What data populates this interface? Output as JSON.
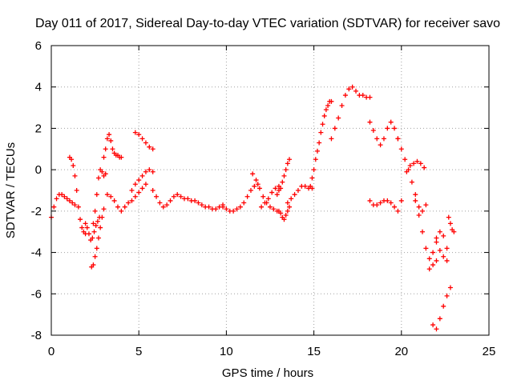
{
  "chart_data": {
    "type": "scatter",
    "title": "Day 011 of 2017, Sidereal Day-to-day VTEC variation (SDTVAR) for receiver savo",
    "xlabel": "GPS time / hours",
    "ylabel": "SDTVAR / TECUs",
    "xlim": [
      0,
      25
    ],
    "ylim": [
      -8,
      6
    ],
    "xticks": [
      "0",
      "5",
      "10",
      "15",
      "20",
      "25"
    ],
    "yticks": [
      "-8",
      "-6",
      "-4",
      "-2",
      "0",
      "2",
      "4",
      "6"
    ],
    "grid": true,
    "legend": "none",
    "marker": "plus",
    "color": "#ff0000",
    "series": [
      {
        "x": [
          0.0,
          0.15,
          0.3,
          0.45,
          0.6,
          0.75,
          0.9,
          1.05,
          1.2,
          1.35
        ],
        "y": [
          -2.3,
          -1.8,
          -1.4,
          -1.2,
          -1.2,
          -1.3,
          -1.4,
          -1.5,
          -1.6,
          -1.7
        ]
      },
      {
        "x": [
          1.05,
          1.15,
          1.25,
          1.35,
          1.45,
          1.55,
          1.65,
          1.75,
          1.85,
          1.95
        ],
        "y": [
          0.6,
          0.5,
          0.2,
          -0.3,
          -1.0,
          -1.8,
          -2.4,
          -2.8,
          -3.0,
          -3.1
        ]
      },
      {
        "x": [
          1.95,
          2.05,
          2.15,
          2.25,
          2.35,
          2.45,
          2.55,
          2.65,
          2.75
        ],
        "y": [
          -2.6,
          -2.8,
          -3.1,
          -3.4,
          -3.3,
          -3.0,
          -2.7,
          -2.5,
          -2.3
        ]
      },
      {
        "x": [
          2.3,
          2.4,
          2.5,
          2.6,
          2.7,
          2.8,
          2.9,
          3.0
        ],
        "y": [
          -4.7,
          -4.6,
          -4.2,
          -3.8,
          -3.3,
          -2.8,
          -2.3,
          -1.9
        ]
      },
      {
        "x": [
          2.4,
          2.5,
          2.6,
          2.7,
          2.8,
          2.9,
          3.0,
          3.1
        ],
        "y": [
          -2.6,
          -2.0,
          -1.2,
          -0.4,
          0.0,
          -0.1,
          -0.3,
          -0.2
        ]
      },
      {
        "x": [
          3.0,
          3.1,
          3.2,
          3.3,
          3.4,
          3.5,
          3.6,
          3.7,
          3.8,
          3.9,
          4.0
        ],
        "y": [
          0.6,
          1.0,
          1.5,
          1.7,
          1.4,
          1.0,
          0.8,
          0.7,
          0.7,
          0.6,
          0.6
        ]
      },
      {
        "x": [
          3.2,
          3.4,
          3.6,
          3.8,
          4.0,
          4.2,
          4.4,
          4.6,
          4.8,
          5.0,
          5.2,
          5.4
        ],
        "y": [
          -1.2,
          -1.3,
          -1.5,
          -1.8,
          -2.0,
          -1.8,
          -1.6,
          -1.5,
          -1.3,
          -1.1,
          -0.9,
          -0.7
        ]
      },
      {
        "x": [
          4.6,
          4.8,
          5.0,
          5.2,
          5.4,
          5.6,
          5.8
        ],
        "y": [
          -1.0,
          -0.7,
          -0.5,
          -0.3,
          -0.1,
          0.0,
          -0.1
        ]
      },
      {
        "x": [
          4.8,
          5.0,
          5.2,
          5.4,
          5.6,
          5.8
        ],
        "y": [
          1.8,
          1.7,
          1.5,
          1.3,
          1.1,
          1.0
        ]
      },
      {
        "x": [
          5.8,
          6.0,
          6.2,
          6.4,
          6.6,
          6.8,
          7.0,
          7.2,
          7.4,
          7.6,
          7.8,
          8.0,
          8.2,
          8.4,
          8.6,
          8.8,
          9.0,
          9.2,
          9.4,
          9.6,
          9.8
        ],
        "y": [
          -1.0,
          -1.3,
          -1.6,
          -1.8,
          -1.7,
          -1.5,
          -1.3,
          -1.2,
          -1.3,
          -1.4,
          -1.4,
          -1.5,
          -1.5,
          -1.6,
          -1.7,
          -1.8,
          -1.8,
          -1.9,
          -1.9,
          -1.8,
          -1.7
        ]
      },
      {
        "x": [
          9.8,
          10.0,
          10.2,
          10.4,
          10.6,
          10.8,
          11.0,
          11.2,
          11.4,
          11.6,
          11.8
        ],
        "y": [
          -1.8,
          -1.9,
          -2.0,
          -2.0,
          -1.9,
          -1.8,
          -1.6,
          -1.3,
          -1.0,
          -0.8,
          -0.7
        ]
      },
      {
        "x": [
          11.5,
          11.7,
          11.9,
          12.1,
          12.3,
          12.5,
          12.7,
          12.9
        ],
        "y": [
          -0.2,
          -0.5,
          -0.9,
          -1.3,
          -1.6,
          -1.8,
          -1.9,
          -2.0
        ]
      },
      {
        "x": [
          12.0,
          12.2,
          12.4,
          12.6,
          12.8,
          13.0
        ],
        "y": [
          -1.8,
          -1.6,
          -1.4,
          -1.1,
          -0.9,
          -0.8
        ]
      },
      {
        "x": [
          12.9,
          13.0,
          13.1,
          13.2,
          13.3,
          13.4,
          13.5,
          13.6
        ],
        "y": [
          -1.2,
          -1.0,
          -0.9,
          -0.6,
          -0.3,
          0.0,
          0.3,
          0.5
        ]
      },
      {
        "x": [
          13.0,
          13.1,
          13.2,
          13.3,
          13.4,
          13.5,
          13.6
        ],
        "y": [
          -2.0,
          -2.1,
          -2.3,
          -2.4,
          -2.2,
          -2.0,
          -1.8
        ]
      },
      {
        "x": [
          13.5,
          13.7,
          13.9,
          14.1,
          14.3,
          14.5,
          14.7,
          14.9
        ],
        "y": [
          -1.6,
          -1.4,
          -1.2,
          -1.0,
          -0.8,
          -0.8,
          -0.9,
          -0.9
        ]
      },
      {
        "x": [
          14.8,
          14.9,
          15.0,
          15.1,
          15.2,
          15.3,
          15.4,
          15.5,
          15.6,
          15.7,
          15.8,
          15.9,
          16.0
        ],
        "y": [
          -0.8,
          -0.4,
          0.0,
          0.5,
          0.9,
          1.3,
          1.8,
          2.2,
          2.6,
          2.9,
          3.1,
          3.3,
          3.3
        ]
      },
      {
        "x": [
          16.0,
          16.2,
          16.4,
          16.6,
          16.8,
          17.0,
          17.2,
          17.4,
          17.6,
          17.8,
          18.0,
          18.2
        ],
        "y": [
          1.5,
          2.0,
          2.5,
          3.1,
          3.6,
          3.9,
          4.0,
          3.8,
          3.6,
          3.6,
          3.5,
          3.5
        ]
      },
      {
        "x": [
          18.2,
          18.4,
          18.6,
          18.8,
          19.0,
          19.2,
          19.4,
          19.6,
          19.8
        ],
        "y": [
          2.3,
          1.9,
          1.5,
          1.2,
          1.5,
          2.0,
          2.3,
          2.0,
          1.5
        ]
      },
      {
        "x": [
          18.2,
          18.4,
          18.6,
          18.8,
          19.0,
          19.2,
          19.4,
          19.6,
          19.8,
          20.0
        ],
        "y": [
          -1.5,
          -1.7,
          -1.7,
          -1.6,
          -1.5,
          -1.5,
          -1.6,
          -1.8,
          -2.0,
          -1.5
        ]
      },
      {
        "x": [
          19.8,
          20.0,
          20.2,
          20.4,
          20.6,
          20.8,
          21.0,
          21.2,
          21.4
        ],
        "y": [
          1.5,
          1.0,
          0.5,
          0.0,
          -0.6,
          -1.2,
          -1.8,
          -2.0,
          -1.7
        ]
      },
      {
        "x": [
          20.3,
          20.5,
          20.7,
          20.9,
          21.1,
          21.3
        ],
        "y": [
          -0.1,
          0.2,
          0.3,
          0.4,
          0.3,
          0.1
        ]
      },
      {
        "x": [
          20.8,
          21.0,
          21.2,
          21.4,
          21.6,
          21.8,
          22.0
        ],
        "y": [
          -1.5,
          -2.2,
          -3.0,
          -3.8,
          -4.3,
          -4.6,
          -4.4
        ]
      },
      {
        "x": [
          21.6,
          21.8,
          22.0,
          22.2,
          22.4,
          22.6
        ],
        "y": [
          -4.8,
          -4.0,
          -3.3,
          -3.0,
          -3.2,
          -3.8
        ]
      },
      {
        "x": [
          22.0,
          22.2,
          22.4,
          22.6
        ],
        "y": [
          -3.5,
          -3.9,
          -4.2,
          -4.4
        ]
      },
      {
        "x": [
          21.8,
          22.0,
          22.2,
          22.4,
          22.6,
          22.8
        ],
        "y": [
          -7.5,
          -7.7,
          -7.2,
          -6.6,
          -6.1,
          -5.7
        ]
      },
      {
        "x": [
          22.7,
          22.8,
          22.9,
          23.0
        ],
        "y": [
          -2.3,
          -2.6,
          -2.9,
          -3.0
        ]
      }
    ]
  }
}
